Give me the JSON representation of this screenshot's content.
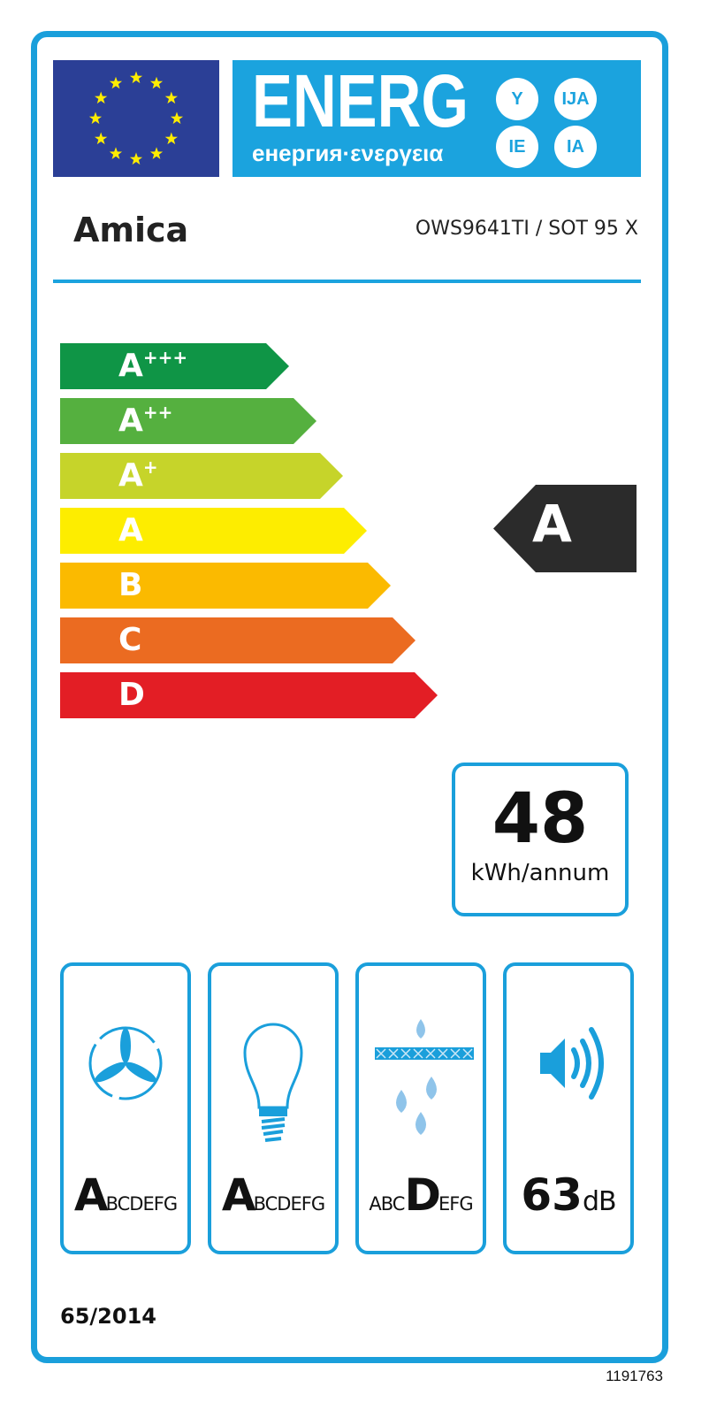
{
  "header": {
    "energy_title": "ENERG",
    "energy_subtitle": "енергия·ενεργεια",
    "language_suffixes": [
      "Y",
      "IJA",
      "IE",
      "IA"
    ],
    "flag_icon": "eu-flag-icon"
  },
  "supplier": {
    "brand": "Amica",
    "model": "OWS9641TI / SOT 95 X"
  },
  "scale": {
    "classes": [
      {
        "letter": "A",
        "plus": "+++",
        "color": "#0f9546"
      },
      {
        "letter": "A",
        "plus": "++",
        "color": "#55b03f"
      },
      {
        "letter": "A",
        "plus": "+",
        "color": "#c6d42a"
      },
      {
        "letter": "A",
        "plus": "",
        "color": "#fded00"
      },
      {
        "letter": "B",
        "plus": "",
        "color": "#fbba00"
      },
      {
        "letter": "C",
        "plus": "",
        "color": "#eb6b21"
      },
      {
        "letter": "D",
        "plus": "",
        "color": "#e31e25"
      }
    ],
    "rating": "A",
    "rating_color": "#2b2b2b"
  },
  "consumption": {
    "value": "48",
    "unit": "kWh/annum"
  },
  "pictograms": [
    {
      "icon": "fan-icon",
      "selected": "A",
      "rest_before": "",
      "rest_after": "BCDEFG"
    },
    {
      "icon": "light-bulb-icon",
      "selected": "A",
      "rest_before": "",
      "rest_after": "BCDEFG"
    },
    {
      "icon": "grease-filter-icon",
      "selected": "D",
      "rest_before": "ABC",
      "rest_after": "EFG"
    },
    {
      "icon": "speaker-noise-icon",
      "value": "63",
      "unit": "dB"
    }
  ],
  "footer": {
    "regulation": "65/2014",
    "code": "1191763"
  },
  "colors": {
    "frame": "#1a9fdb",
    "flag": "#2b3f96",
    "energy_banner": "#1ba3de"
  }
}
